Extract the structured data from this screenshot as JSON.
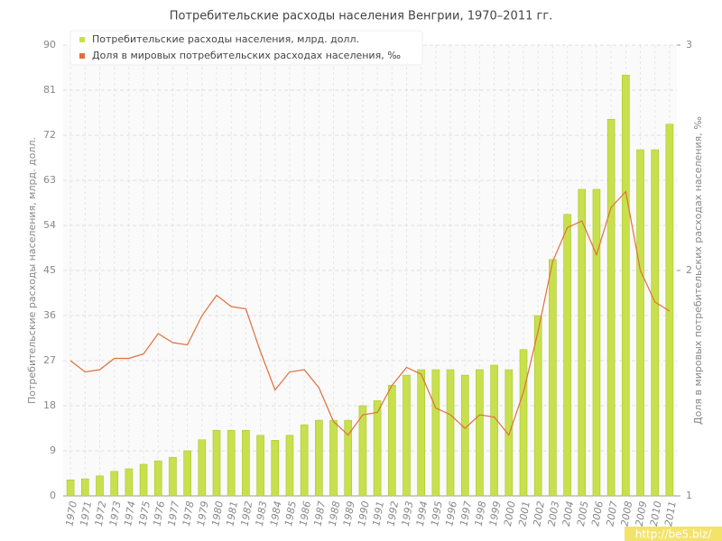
{
  "chart_data": {
    "type": "bar-line",
    "title": "Потребительские расходы населения Венгрии, 1970–2011 гг.",
    "ylabel": "Потребительские расходы населения, млрд. долл.",
    "y2label": "Доля в мировых потребительских расходах населения, ‰",
    "watermark": "http://be5.biz/",
    "categories": [
      "1970",
      "1971",
      "1972",
      "1973",
      "1974",
      "1975",
      "1976",
      "1977",
      "1978",
      "1979",
      "1980",
      "1981",
      "1982",
      "1983",
      "1984",
      "1985",
      "1986",
      "1987",
      "1988",
      "1989",
      "1990",
      "1991",
      "1992",
      "1993",
      "1994",
      "1995",
      "1996",
      "1997",
      "1998",
      "1999",
      "2000",
      "2001",
      "2002",
      "2003",
      "2004",
      "2005",
      "2006",
      "2007",
      "2008",
      "2009",
      "2010",
      "2011"
    ],
    "series": [
      {
        "name": "Потребительские расходы населения, млрд. долл.",
        "type": "bar",
        "color": "#c8e04c",
        "values": [
          3.2,
          3.4,
          4,
          4.9,
          5.4,
          6.3,
          7,
          7.7,
          9,
          11.2,
          13.1,
          13.1,
          13.1,
          12.1,
          11.1,
          12.1,
          14.2,
          15.1,
          15.1,
          15.1,
          18,
          19,
          22.1,
          24.1,
          25.2,
          25.2,
          25.2,
          24.1,
          25.2,
          26.1,
          25.2,
          29.2,
          36,
          47.2,
          56.2,
          61.2,
          61.2,
          75.2,
          84,
          69.1,
          69.1,
          74.2
        ]
      },
      {
        "name": "Доля в мировых потребительских расходах населения, ‰",
        "type": "line",
        "axis": "y2",
        "color": "#e0703a",
        "values": [
          1.6,
          1.55,
          1.56,
          1.61,
          1.61,
          1.63,
          1.72,
          1.68,
          1.67,
          1.8,
          1.89,
          1.84,
          1.83,
          1.64,
          1.47,
          1.55,
          1.56,
          1.48,
          1.33,
          1.27,
          1.36,
          1.37,
          1.49,
          1.57,
          1.54,
          1.39,
          1.36,
          1.3,
          1.36,
          1.35,
          1.27,
          1.46,
          1.73,
          2.04,
          2.19,
          2.22,
          2.07,
          2.28,
          2.35,
          2.0,
          1.86,
          1.82
        ]
      }
    ],
    "ylim": [
      0,
      90
    ],
    "yticks": [
      0,
      9,
      18,
      27,
      36,
      45,
      54,
      63,
      72,
      81,
      90
    ],
    "y2lim": [
      1,
      3
    ],
    "y2ticks": [
      1,
      2,
      3
    ],
    "grid": true,
    "legend": "top-left"
  }
}
